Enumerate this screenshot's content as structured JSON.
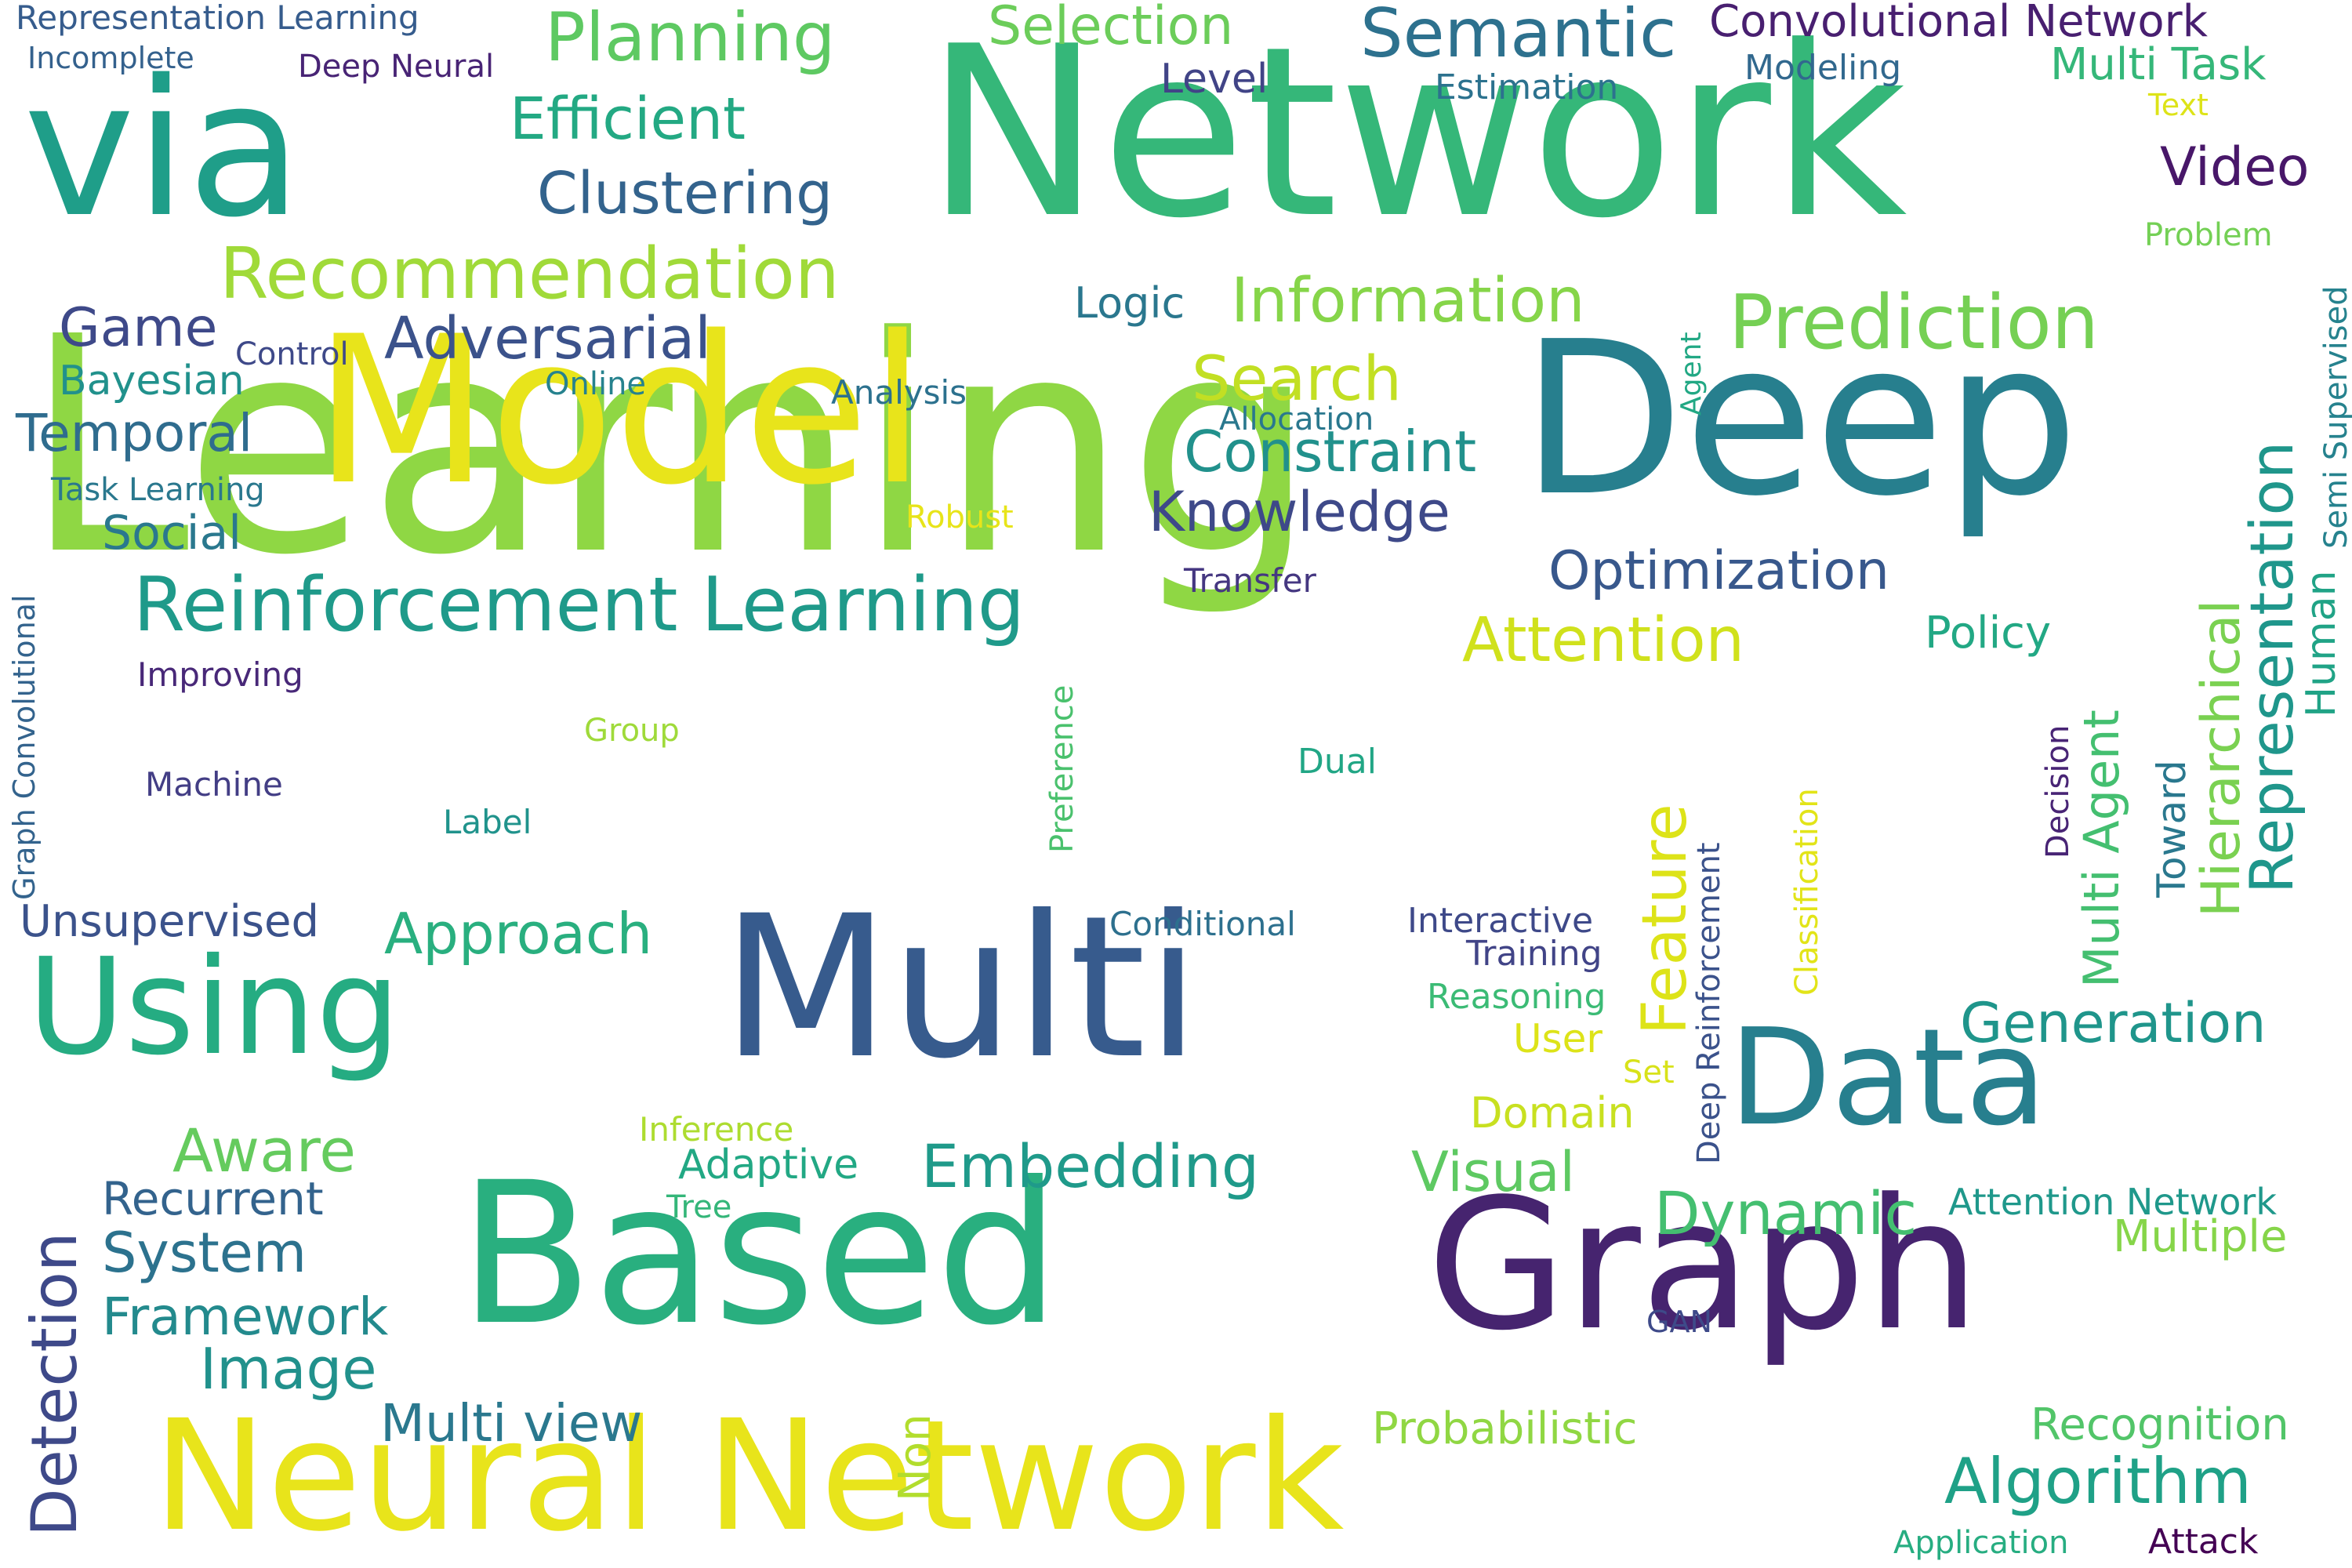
{
  "word_cloud": {
    "words": [
      {
        "text": "Learning",
        "color": "#8fd744",
        "orientation": "horizontal"
      },
      {
        "text": "Network",
        "color": "#35b779",
        "orientation": "horizontal"
      },
      {
        "text": "Model",
        "color": "#e8e41b",
        "orientation": "horizontal"
      },
      {
        "text": "Deep",
        "color": "#277f8e",
        "orientation": "horizontal"
      },
      {
        "text": "Multi",
        "color": "#375b8d",
        "orientation": "horizontal"
      },
      {
        "text": "Based",
        "color": "#29af7f",
        "orientation": "horizontal"
      },
      {
        "text": "Graph",
        "color": "#46246f",
        "orientation": "horizontal"
      },
      {
        "text": "Neural Network",
        "color": "#e8e41b",
        "orientation": "horizontal"
      },
      {
        "text": "via",
        "color": "#1f9e89",
        "orientation": "horizontal"
      },
      {
        "text": "Using",
        "color": "#25ac82",
        "orientation": "horizontal"
      },
      {
        "text": "Data",
        "color": "#277f8e",
        "orientation": "horizontal"
      },
      {
        "text": "Reinforcement Learning",
        "color": "#1f9a8a",
        "orientation": "horizontal"
      },
      {
        "text": "Recommendation",
        "color": "#a0da39",
        "orientation": "horizontal"
      },
      {
        "text": "Prediction",
        "color": "#75d054",
        "orientation": "horizontal"
      },
      {
        "text": "Semantic",
        "color": "#2d718e",
        "orientation": "horizontal"
      },
      {
        "text": "Planning",
        "color": "#5ec962",
        "orientation": "horizontal"
      },
      {
        "text": "Efficient",
        "color": "#23a983",
        "orientation": "horizontal"
      },
      {
        "text": "Clustering",
        "color": "#33638d",
        "orientation": "horizontal"
      },
      {
        "text": "Adversarial",
        "color": "#3b528b",
        "orientation": "horizontal"
      },
      {
        "text": "Game",
        "color": "#3e4989",
        "orientation": "horizontal"
      },
      {
        "text": "Information",
        "color": "#86d549",
        "orientation": "horizontal"
      },
      {
        "text": "Constraint",
        "color": "#21918c",
        "orientation": "horizontal"
      },
      {
        "text": "Knowledge",
        "color": "#3e4989",
        "orientation": "horizontal"
      },
      {
        "text": "Optimization",
        "color": "#38588c",
        "orientation": "horizontal"
      },
      {
        "text": "Attention",
        "color": "#d0e11c",
        "orientation": "horizontal"
      },
      {
        "text": "Search",
        "color": "#c2df23",
        "orientation": "horizontal"
      },
      {
        "text": "Temporal",
        "color": "#2f6c8e",
        "orientation": "horizontal"
      },
      {
        "text": "Social",
        "color": "#2a788e",
        "orientation": "horizontal"
      },
      {
        "text": "Bayesian",
        "color": "#21918c",
        "orientation": "horizontal"
      },
      {
        "text": "Convolutional Network",
        "color": "#481f70",
        "orientation": "horizontal"
      },
      {
        "text": "Selection",
        "color": "#6ccd5a",
        "orientation": "horizontal"
      },
      {
        "text": "Multi Task",
        "color": "#35b779",
        "orientation": "horizontal"
      },
      {
        "text": "Video",
        "color": "#481769",
        "orientation": "horizontal"
      },
      {
        "text": "Level",
        "color": "#414487",
        "orientation": "horizontal"
      },
      {
        "text": "Modeling",
        "color": "#31688e",
        "orientation": "horizontal"
      },
      {
        "text": "Estimation",
        "color": "#2c728e",
        "orientation": "horizontal"
      },
      {
        "text": "Representation Learning",
        "color": "#365c8d",
        "orientation": "horizontal"
      },
      {
        "text": "Incomplete",
        "color": "#34618d",
        "orientation": "horizontal"
      },
      {
        "text": "Deep Neural",
        "color": "#482475",
        "orientation": "horizontal"
      },
      {
        "text": "Text",
        "color": "#dde318",
        "orientation": "horizontal"
      },
      {
        "text": "Problem",
        "color": "#74d055",
        "orientation": "horizontal"
      },
      {
        "text": "Logic",
        "color": "#2a778e",
        "orientation": "horizontal"
      },
      {
        "text": "Control",
        "color": "#3e4989",
        "orientation": "horizontal"
      },
      {
        "text": "Online",
        "color": "#26828e",
        "orientation": "horizontal"
      },
      {
        "text": "Analysis",
        "color": "#2c718e",
        "orientation": "horizontal"
      },
      {
        "text": "Allocation",
        "color": "#2a788e",
        "orientation": "horizontal"
      },
      {
        "text": "Task Learning",
        "color": "#2a788e",
        "orientation": "horizontal"
      },
      {
        "text": "Robust",
        "color": "#e7e419",
        "orientation": "horizontal"
      },
      {
        "text": "Transfer",
        "color": "#453781",
        "orientation": "horizontal"
      },
      {
        "text": "Improving",
        "color": "#482878",
        "orientation": "horizontal"
      },
      {
        "text": "Policy",
        "color": "#22a884",
        "orientation": "horizontal"
      },
      {
        "text": "Group",
        "color": "#9fda3a",
        "orientation": "horizontal"
      },
      {
        "text": "Machine",
        "color": "#433e85",
        "orientation": "horizontal"
      },
      {
        "text": "Dual",
        "color": "#21a685",
        "orientation": "horizontal"
      },
      {
        "text": "Label",
        "color": "#20938c",
        "orientation": "horizontal"
      },
      {
        "text": "Unsupervised",
        "color": "#3b528b",
        "orientation": "horizontal"
      },
      {
        "text": "Approach",
        "color": "#29af7f",
        "orientation": "horizontal"
      },
      {
        "text": "Conditional",
        "color": "#2d708e",
        "orientation": "horizontal"
      },
      {
        "text": "Interactive",
        "color": "#3e4989",
        "orientation": "horizontal"
      },
      {
        "text": "Training",
        "color": "#414487",
        "orientation": "horizontal"
      },
      {
        "text": "Reasoning",
        "color": "#3bbb75",
        "orientation": "horizontal"
      },
      {
        "text": "User",
        "color": "#dde318",
        "orientation": "horizontal"
      },
      {
        "text": "Set",
        "color": "#d8e219",
        "orientation": "horizontal"
      },
      {
        "text": "Domain",
        "color": "#c8e020",
        "orientation": "horizontal"
      },
      {
        "text": "Generation",
        "color": "#1f958b",
        "orientation": "horizontal"
      },
      {
        "text": "Aware",
        "color": "#65cb5e",
        "orientation": "horizontal"
      },
      {
        "text": "Inference",
        "color": "#addc30",
        "orientation": "horizontal"
      },
      {
        "text": "Adaptive",
        "color": "#22a884",
        "orientation": "horizontal"
      },
      {
        "text": "Embedding",
        "color": "#1f9a8a",
        "orientation": "horizontal"
      },
      {
        "text": "Visual",
        "color": "#5ec962",
        "orientation": "horizontal"
      },
      {
        "text": "Recurrent",
        "color": "#33638d",
        "orientation": "horizontal"
      },
      {
        "text": "Tree",
        "color": "#34b679",
        "orientation": "horizontal"
      },
      {
        "text": "System",
        "color": "#2c728e",
        "orientation": "horizontal"
      },
      {
        "text": "Framework",
        "color": "#238a8d",
        "orientation": "horizontal"
      },
      {
        "text": "Image",
        "color": "#21918c",
        "orientation": "horizontal"
      },
      {
        "text": "Dynamic",
        "color": "#44bf70",
        "orientation": "horizontal"
      },
      {
        "text": "Attention Network",
        "color": "#1f988b",
        "orientation": "horizontal"
      },
      {
        "text": "Multiple",
        "color": "#86d549",
        "orientation": "horizontal"
      },
      {
        "text": "GAN",
        "color": "#3e4a89",
        "orientation": "horizontal"
      },
      {
        "text": "Multi view",
        "color": "#2a788e",
        "orientation": "horizontal"
      },
      {
        "text": "Probabilistic",
        "color": "#90d743",
        "orientation": "horizontal"
      },
      {
        "text": "Recognition",
        "color": "#52c569",
        "orientation": "horizontal"
      },
      {
        "text": "Algorithm",
        "color": "#1fa187",
        "orientation": "horizontal"
      },
      {
        "text": "Application",
        "color": "#27ad81",
        "orientation": "horizontal"
      },
      {
        "text": "Attack",
        "color": "#440154",
        "orientation": "horizontal"
      },
      {
        "text": "Detection",
        "color": "#3e4989",
        "orientation": "vertical"
      },
      {
        "text": "Graph Convolutional",
        "color": "#33638d",
        "orientation": "vertical"
      },
      {
        "text": "Feature",
        "color": "#dde318",
        "orientation": "vertical"
      },
      {
        "text": "Preference",
        "color": "#4ac16d",
        "orientation": "vertical"
      },
      {
        "text": "Deep Reinforcement",
        "color": "#3b528b",
        "orientation": "vertical"
      },
      {
        "text": "Classification",
        "color": "#e2e418",
        "orientation": "vertical"
      },
      {
        "text": "Multi Agent",
        "color": "#44bf70",
        "orientation": "vertical"
      },
      {
        "text": "Decision",
        "color": "#482475",
        "orientation": "vertical"
      },
      {
        "text": "Toward",
        "color": "#2a788e",
        "orientation": "vertical"
      },
      {
        "text": "Hierarchical",
        "color": "#7ad151",
        "orientation": "vertical"
      },
      {
        "text": "Representation",
        "color": "#1f968b",
        "orientation": "vertical"
      },
      {
        "text": "Human",
        "color": "#20a386",
        "orientation": "vertical"
      },
      {
        "text": "Semi Supervised",
        "color": "#26828e",
        "orientation": "vertical"
      },
      {
        "text": "Agent",
        "color": "#22a884",
        "orientation": "vertical"
      },
      {
        "text": "Non",
        "color": "#b2dd2d",
        "orientation": "vertical"
      }
    ]
  }
}
